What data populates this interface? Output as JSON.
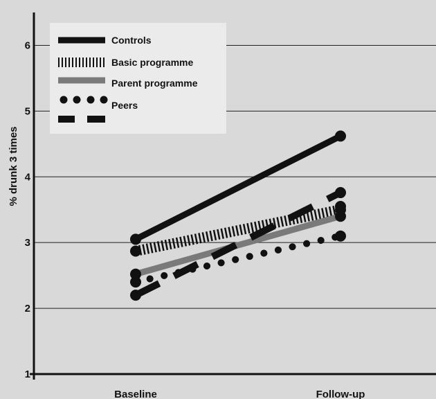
{
  "chart_data": {
    "type": "line",
    "categories": [
      "Baseline",
      "Follow-up"
    ],
    "ylabel": "% drunk 3 times",
    "xlabel": "",
    "title": "",
    "ylim": [
      1,
      6.5
    ],
    "yticks": [
      1,
      2,
      3,
      4,
      5,
      6
    ],
    "grid": true,
    "legend": "top-left",
    "series": [
      {
        "name": "Controls",
        "values": [
          3.05,
          4.62
        ],
        "color": "#111111",
        "style": "solid-thick"
      },
      {
        "name": "Basic programme",
        "values": [
          2.87,
          3.5
        ],
        "color": "#111111",
        "style": "hatched"
      },
      {
        "name": "Parent programme",
        "values": [
          2.52,
          3.4
        ],
        "color": "#777777",
        "style": "solid-gray"
      },
      {
        "name": "Peers",
        "values": [
          2.4,
          3.1
        ],
        "color": "#111111",
        "style": "dotted"
      },
      {
        "name": "",
        "values": [
          2.2,
          3.76
        ],
        "color": "#111111",
        "style": "dashed"
      }
    ],
    "extra_points": [
      {
        "category": "Follow-up",
        "value": 3.55
      }
    ]
  }
}
